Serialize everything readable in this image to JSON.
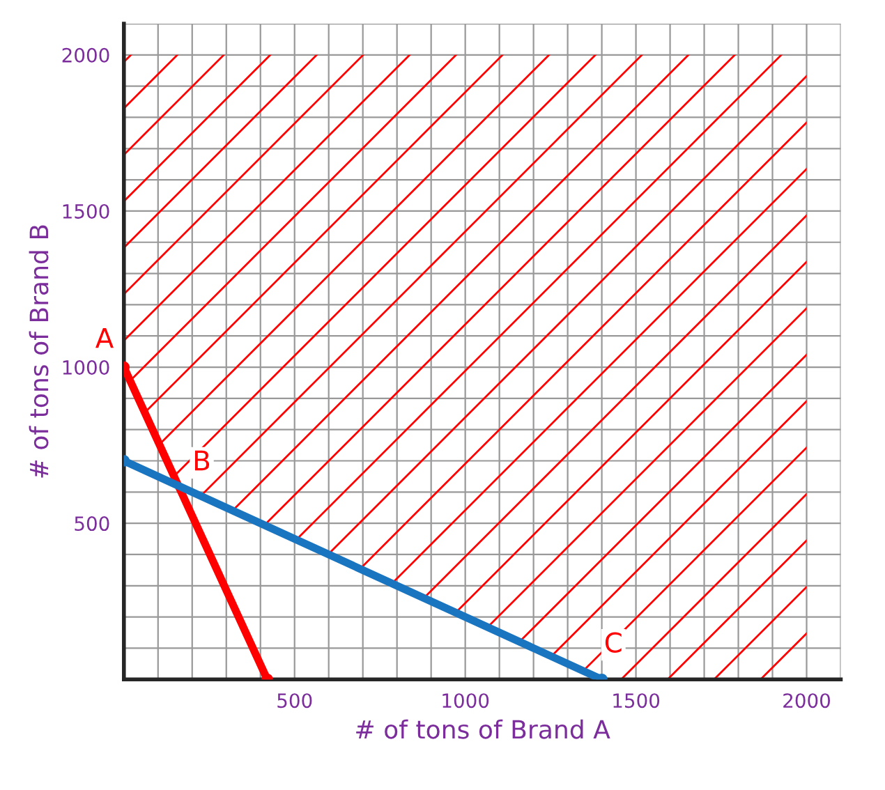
{
  "chart_data": {
    "type": "line",
    "xlabel": "# of tons of Brand A",
    "ylabel": "# of tons of Brand B",
    "series": [
      {
        "color": "#ff0000",
        "marker": "circle",
        "x": [
          0,
          420
        ],
        "values": [
          1000,
          0
        ]
      },
      {
        "color": "#1a75c0",
        "marker": "circle",
        "x": [
          0,
          1400
        ],
        "values": [
          700,
          0
        ]
      }
    ],
    "annotations": [
      {
        "text": "A",
        "x": 0,
        "y": 1000
      },
      {
        "text": "B",
        "x": 160,
        "y": 620
      },
      {
        "text": "C",
        "x": 1400,
        "y": 0
      }
    ],
    "xlim": [
      0,
      2100
    ],
    "ylim": [
      0,
      2100
    ],
    "xticks": [
      500,
      1000,
      1500,
      2000
    ],
    "yticks": [
      500,
      1000,
      1500,
      2000
    ],
    "grid": true
  }
}
